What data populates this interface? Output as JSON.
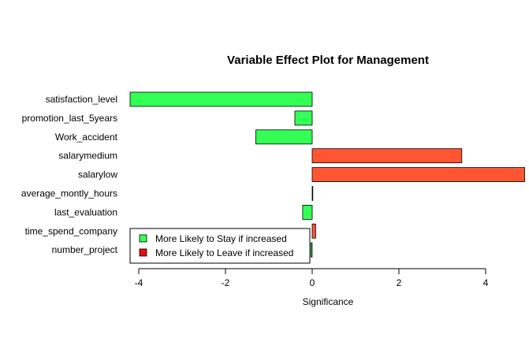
{
  "chart_data": {
    "type": "bar",
    "orientation": "horizontal",
    "title": "Variable Effect Plot for Management",
    "xlabel": "Significance",
    "ylabel": "",
    "xlim": [
      -4.2,
      4.9
    ],
    "x_ticks": [
      "-4",
      "-2",
      "0",
      "2",
      "4"
    ],
    "x_tick_values": [
      -4,
      -2,
      0,
      2,
      4
    ],
    "categories": [
      "satisfaction_level",
      "promotion_last_5years",
      "Work_accident",
      "salarymedium",
      "salarylow",
      "average_montly_hours",
      "last_evaluation",
      "time_spend_company",
      "number_project"
    ],
    "values": [
      -4.2,
      -0.4,
      -1.3,
      3.45,
      4.9,
      0.01,
      -0.22,
      0.08,
      -0.03
    ],
    "colors": {
      "stay": "#33ff55",
      "leave": "#ff5533"
    },
    "grid": false,
    "legend_position": "bottom-left",
    "legend": [
      {
        "label": "More Likely to Stay if increased",
        "color": "#33ff55"
      },
      {
        "label": "More Likely to Leave if increased",
        "color": "#dd1111"
      }
    ]
  }
}
